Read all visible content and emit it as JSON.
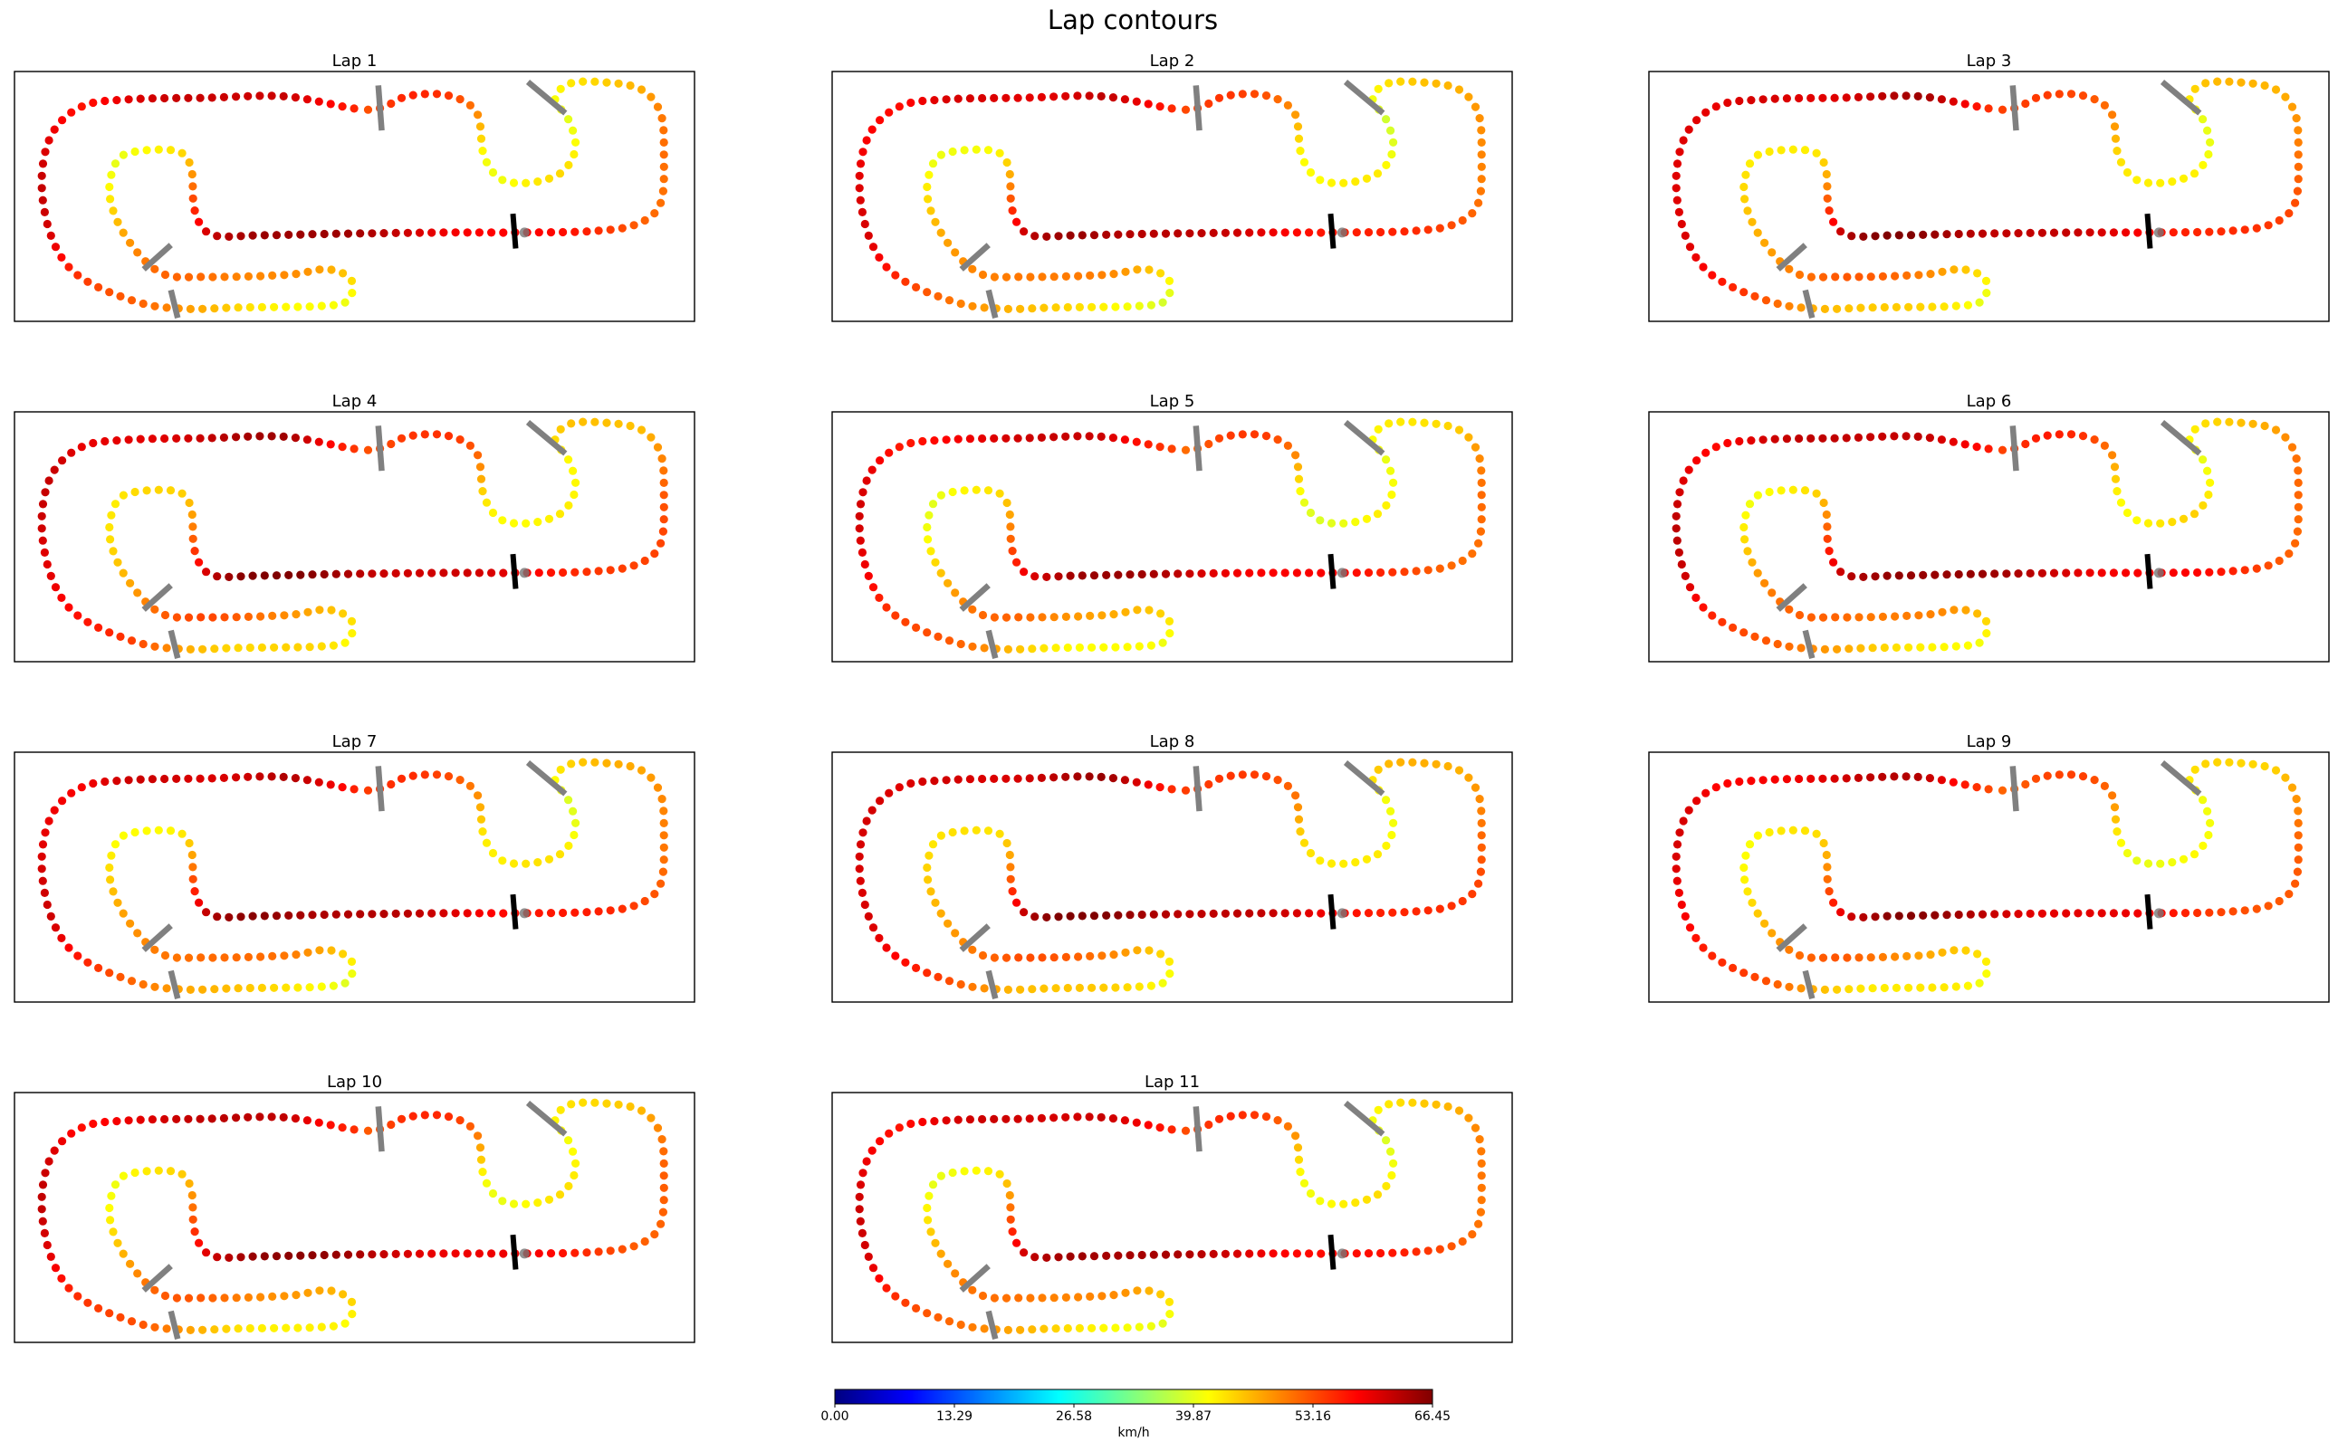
{
  "figure": {
    "title": "Lap contours"
  },
  "colors": {
    "jet": [
      "#000080",
      "#0000ff",
      "#0080ff",
      "#00ffff",
      "#80ff80",
      "#ffff00",
      "#ff8000",
      "#ff0000",
      "#800000"
    ],
    "gate": "#808080",
    "finish": "#000000",
    "dot_outline": "none",
    "end_marker": "#777777"
  },
  "colorbar": {
    "label": "km/h",
    "min": 0,
    "max": 66.45,
    "ticks": [
      "0.00",
      "13.29",
      "26.58",
      "39.87",
      "53.16",
      "66.45"
    ]
  },
  "chart_data": {
    "type": "scatter",
    "description_units": "track x / y in arbitrary track units (0-100 x, 0-36 y); color = speed in km/h",
    "track_waypoints": [
      [
        52,
        5.5
      ],
      [
        58,
        3.5
      ],
      [
        64,
        3.5
      ],
      [
        68,
        6
      ],
      [
        69,
        12
      ],
      [
        71.5,
        15.5
      ],
      [
        76,
        16
      ],
      [
        80.5,
        14.5
      ],
      [
        82.5,
        11
      ],
      [
        81.5,
        7
      ],
      [
        79.5,
        4
      ],
      [
        81.5,
        1.8
      ],
      [
        86,
        1.5
      ],
      [
        92,
        2.5
      ],
      [
        95,
        6
      ],
      [
        95.5,
        12
      ],
      [
        95,
        19
      ],
      [
        91.5,
        22
      ],
      [
        85,
        23
      ],
      [
        74,
        23.2
      ],
      [
        64,
        23.2
      ],
      [
        54,
        23.3
      ],
      [
        46,
        23.4
      ],
      [
        36,
        23.6
      ],
      [
        29,
        23.5
      ],
      [
        26.5,
        20
      ],
      [
        26,
        14
      ],
      [
        24,
        11.5
      ],
      [
        18,
        11.5
      ],
      [
        15,
        13
      ],
      [
        14,
        18
      ],
      [
        16.5,
        24
      ],
      [
        21.5,
        29
      ],
      [
        28,
        29.6
      ],
      [
        40,
        29.3
      ],
      [
        46,
        28.5
      ],
      [
        49.5,
        30
      ],
      [
        49,
        33
      ],
      [
        45,
        33.8
      ],
      [
        33,
        34
      ],
      [
        25,
        34.2
      ],
      [
        18,
        33.2
      ],
      [
        9.5,
        29.5
      ],
      [
        5.5,
        24
      ],
      [
        4,
        16
      ],
      [
        5.5,
        9
      ],
      [
        10,
        5
      ],
      [
        17,
        4
      ],
      [
        28,
        3.8
      ],
      [
        40,
        3.6
      ],
      [
        52,
        5.5
      ]
    ],
    "waypoint_speeds": [
      53,
      55,
      54,
      50,
      42,
      41,
      42,
      43,
      41,
      40,
      42,
      44,
      45,
      46,
      49,
      51,
      52,
      53,
      55,
      58,
      60,
      62,
      64,
      66,
      62,
      55,
      46,
      43,
      42,
      41,
      43,
      47,
      51,
      52,
      49,
      46,
      43,
      40,
      42,
      44,
      47,
      52,
      56,
      60,
      61,
      60,
      58,
      60,
      61,
      63,
      53
    ],
    "gates": [
      {
        "name": "gate-1",
        "type": "split",
        "x1": 53.5,
        "y1": 2,
        "x2": 54,
        "y2": 8.5
      },
      {
        "name": "gate-2",
        "type": "split",
        "x1": 75.5,
        "y1": 1.5,
        "x2": 81,
        "y2": 6
      },
      {
        "name": "gate-3",
        "type": "split",
        "x1": 19,
        "y1": 28.5,
        "x2": 23,
        "y2": 25
      },
      {
        "name": "gate-4",
        "type": "split",
        "x1": 23,
        "y1": 31.5,
        "x2": 24,
        "y2": 35.5
      },
      {
        "name": "finish",
        "type": "finish",
        "x1": 73.3,
        "y1": 20.5,
        "x2": 73.7,
        "y2": 25.5
      }
    ],
    "laps": [
      {
        "label": "Lap 1",
        "speed_offset": 0.0
      },
      {
        "label": "Lap 2",
        "speed_offset": -0.5
      },
      {
        "label": "Lap 3",
        "speed_offset": 0.4
      },
      {
        "label": "Lap 4",
        "speed_offset": 0.8
      },
      {
        "label": "Lap 5",
        "speed_offset": -0.8
      },
      {
        "label": "Lap 6",
        "speed_offset": 0.6
      },
      {
        "label": "Lap 7",
        "speed_offset": 0.3
      },
      {
        "label": "Lap 8",
        "speed_offset": 0.9
      },
      {
        "label": "Lap 9",
        "speed_offset": -0.4
      },
      {
        "label": "Lap 10",
        "speed_offset": 0.2
      },
      {
        "label": "Lap 11",
        "speed_offset": -0.2
      }
    ],
    "xlim": [
      0,
      100
    ],
    "ylim": [
      0,
      36
    ],
    "grid": false,
    "axes_visible": false,
    "points_per_lap": 190
  }
}
